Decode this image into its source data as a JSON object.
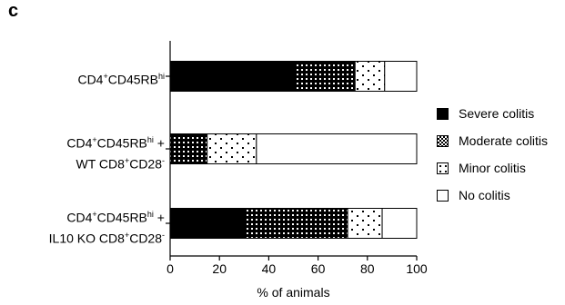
{
  "panel_label": "c",
  "chart_data": {
    "type": "bar",
    "orientation": "horizontal",
    "stacked": true,
    "categories": [
      {
        "parts": [
          {
            "text": "CD4",
            "sup": "+"
          },
          {
            "text": "CD45RB",
            "sup": "hi"
          }
        ],
        "line2": null
      },
      {
        "parts": [
          {
            "text": "CD4",
            "sup": "+"
          },
          {
            "text": "CD45RB",
            "sup": "hi"
          },
          {
            "text": " +",
            "sup": ""
          }
        ],
        "line2": [
          {
            "text": "WT CD8",
            "sup": "+"
          },
          {
            "text": "CD28",
            "sup": "-"
          }
        ]
      },
      {
        "parts": [
          {
            "text": "CD4",
            "sup": "+"
          },
          {
            "text": "CD45RB",
            "sup": "hi"
          },
          {
            "text": " +",
            "sup": ""
          }
        ],
        "line2": [
          {
            "text": "IL10 KO CD8",
            "sup": "+"
          },
          {
            "text": "CD28",
            "sup": "-"
          }
        ]
      }
    ],
    "series": [
      {
        "name": "Severe colitis",
        "fill": "solid",
        "color": "#000000",
        "values": [
          50,
          0,
          30
        ]
      },
      {
        "name": "Moderate colitis",
        "fill": "dense-dots",
        "color": "#000000",
        "values": [
          25,
          15,
          42
        ]
      },
      {
        "name": "Minor colitis",
        "fill": "sparse-dots",
        "color": "#000000",
        "values": [
          12,
          20,
          14
        ]
      },
      {
        "name": "No colitis",
        "fill": "empty",
        "color": "#ffffff",
        "values": [
          13,
          65,
          14
        ]
      }
    ],
    "xlabel": "% of animals",
    "xlim": [
      0,
      100
    ],
    "xticks": [
      0,
      20,
      40,
      60,
      80,
      100
    ],
    "legend_position": "right",
    "grid": false
  }
}
